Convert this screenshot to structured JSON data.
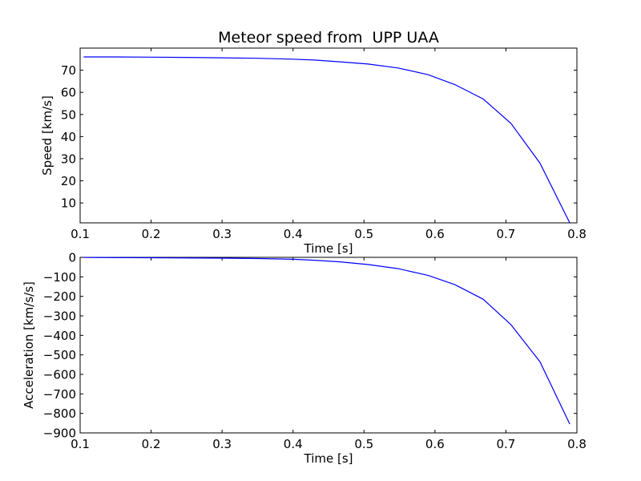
{
  "chart_data": [
    {
      "type": "line",
      "title": "Meteor speed from  UPP UAA",
      "xlabel": "Time [s]",
      "ylabel": "Speed [km/s]",
      "xlim": [
        0.1,
        0.8
      ],
      "ylim": [
        1,
        80
      ],
      "xticks": [
        0.1,
        0.2,
        0.3,
        0.4,
        0.5,
        0.6,
        0.7,
        0.8
      ],
      "xtick_labels": [
        "0.1",
        "0.2",
        "0.3",
        "0.4",
        "0.5",
        "0.6",
        "0.7",
        "0.8"
      ],
      "yticks": [
        10,
        20,
        30,
        40,
        50,
        60,
        70
      ],
      "ytick_labels": [
        "10",
        "20",
        "30",
        "40",
        "50",
        "60",
        "70"
      ],
      "grid": false,
      "series": [
        {
          "color": "#0000ff",
          "x": [
            0.105,
            0.15,
            0.2,
            0.25,
            0.3,
            0.35,
            0.4,
            0.43,
            0.466,
            0.506,
            0.548,
            0.59,
            0.628,
            0.668,
            0.707,
            0.748,
            0.79
          ],
          "y": [
            76,
            76,
            75.9,
            75.8,
            75.6,
            75.4,
            75,
            74.6,
            73.8,
            72.8,
            71,
            68,
            63.5,
            57,
            46,
            28,
            1
          ]
        }
      ]
    },
    {
      "type": "line",
      "title": "",
      "xlabel": "Time [s]",
      "ylabel": "Acceleration [km/s/s]",
      "xlim": [
        0.1,
        0.8
      ],
      "ylim": [
        -900,
        0
      ],
      "xticks": [
        0.1,
        0.2,
        0.3,
        0.4,
        0.5,
        0.6,
        0.7,
        0.8
      ],
      "xtick_labels": [
        "0.1",
        "0.2",
        "0.3",
        "0.4",
        "0.5",
        "0.6",
        "0.7",
        "0.8"
      ],
      "yticks": [
        0,
        -100,
        -200,
        -300,
        -400,
        -500,
        -600,
        -700,
        -800,
        -900
      ],
      "ytick_labels": [
        "0",
        "−100",
        "−200",
        "−300",
        "−400",
        "−500",
        "−600",
        "−700",
        "−800",
        "−900"
      ],
      "grid": false,
      "series": [
        {
          "color": "#0000ff",
          "x": [
            0.105,
            0.2,
            0.3,
            0.35,
            0.4,
            0.43,
            0.466,
            0.506,
            0.548,
            0.59,
            0.628,
            0.668,
            0.707,
            0.748,
            0.79
          ],
          "y": [
            -1,
            -2,
            -4,
            -6,
            -10,
            -15,
            -23,
            -37,
            -58,
            -92,
            -140,
            -215,
            -345,
            -535,
            -855
          ]
        }
      ]
    }
  ]
}
